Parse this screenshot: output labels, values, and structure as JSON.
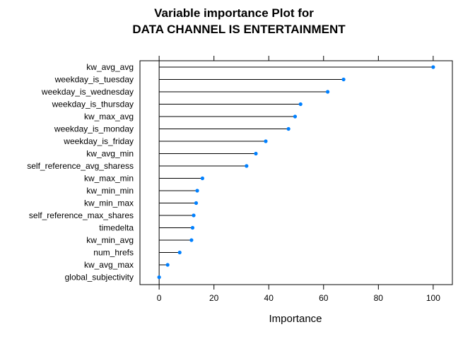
{
  "chart_data": {
    "type": "dot",
    "title_line1": "Variable importance Plot for",
    "title_line2": "DATA CHANNEL IS ENTERTAINMENT",
    "xlabel": "Importance",
    "xlim": [
      -7,
      107
    ],
    "xticks": [
      0,
      20,
      40,
      60,
      80,
      100
    ],
    "point_color": "#0080ff",
    "categories": [
      "kw_avg_avg",
      "weekday_is_tuesday",
      "weekday_is_wednesday",
      "weekday_is_thursday",
      "kw_max_avg",
      "weekday_is_monday",
      "weekday_is_friday",
      "kw_avg_min",
      "self_reference_avg_sharess",
      "kw_max_min",
      "kw_min_min",
      "kw_min_max",
      "self_reference_max_shares",
      "timedelta",
      "kw_min_avg",
      "num_hrefs",
      "kw_avg_max",
      "global_subjectivity"
    ],
    "values": [
      100,
      67.3,
      61.5,
      51.6,
      49.6,
      47.2,
      38.9,
      35.3,
      31.9,
      15.8,
      13.9,
      13.5,
      12.6,
      12.2,
      11.8,
      7.5,
      3.1,
      0
    ]
  }
}
